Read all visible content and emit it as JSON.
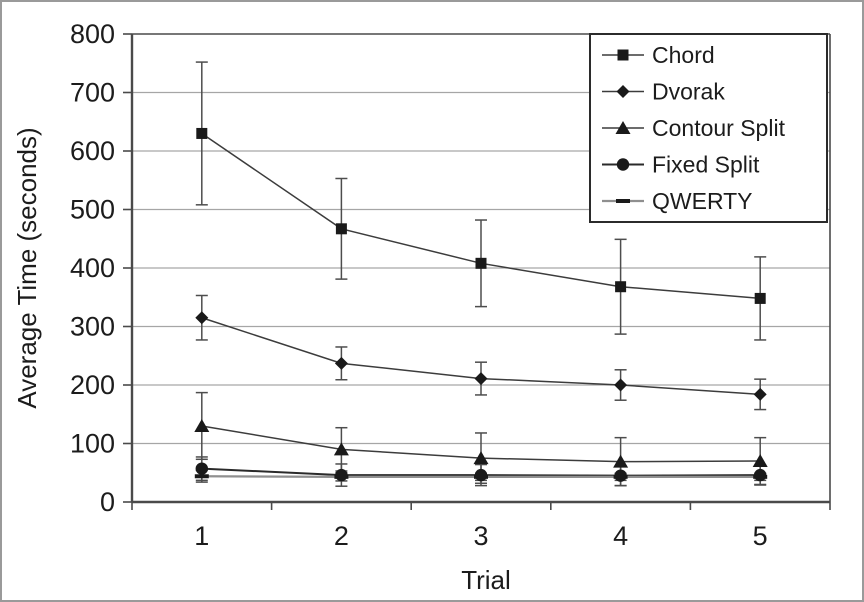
{
  "figure": {
    "background": "#ffffff",
    "border_color": "#9a9a9a"
  },
  "chart_data": {
    "type": "line",
    "title": "",
    "xlabel": "Trial",
    "ylabel": "Average Time (seconds)",
    "x": [
      1,
      2,
      3,
      4,
      5
    ],
    "xtick_labels": [
      "1",
      "2",
      "3",
      "4",
      "5"
    ],
    "ylim": [
      0,
      800
    ],
    "ytick_step": 100,
    "ytick_labels": [
      "0",
      "100",
      "200",
      "300",
      "400",
      "500",
      "600",
      "700",
      "800"
    ],
    "grid": "horizontal",
    "error_bars": true,
    "legend_position": "top-right",
    "colors": {
      "text": "#1c1c1c",
      "grid": "#a6a6a6",
      "axis_frame": "#4a4a4a",
      "error_bar": "#4d4d4d",
      "marker_fill": "#1a1a1a",
      "legend_border": "#2b2b2b",
      "legend_fill": "#ffffff"
    },
    "series": [
      {
        "name": "Chord",
        "marker": "square",
        "line_color": "#3c3c3c",
        "line_width": 1.5,
        "values": [
          630,
          467,
          408,
          368,
          348
        ],
        "errors": [
          122,
          86,
          74,
          81,
          71
        ]
      },
      {
        "name": "Dvorak",
        "marker": "diamond",
        "line_color": "#3c3c3c",
        "line_width": 1.5,
        "values": [
          315,
          237,
          211,
          200,
          184
        ],
        "errors": [
          38,
          28,
          28,
          26,
          26
        ]
      },
      {
        "name": "Contour Split",
        "marker": "triangle",
        "line_color": "#3c3c3c",
        "line_width": 1.5,
        "values": [
          130,
          90,
          75,
          69,
          70
        ],
        "errors": [
          57,
          37,
          43,
          41,
          40
        ]
      },
      {
        "name": "Fixed Split",
        "marker": "circle",
        "line_color": "#2a2a2a",
        "line_width": 2.0,
        "values": [
          57,
          46,
          46,
          45,
          46
        ],
        "errors": [
          20,
          19,
          18,
          17,
          17
        ]
      },
      {
        "name": "QWERTY",
        "marker": "dash",
        "line_color": "#8f8f8f",
        "line_width": 2.2,
        "values": [
          44,
          43,
          43,
          43,
          43
        ],
        "errors": [
          10,
          7,
          6,
          6,
          6
        ]
      }
    ]
  }
}
